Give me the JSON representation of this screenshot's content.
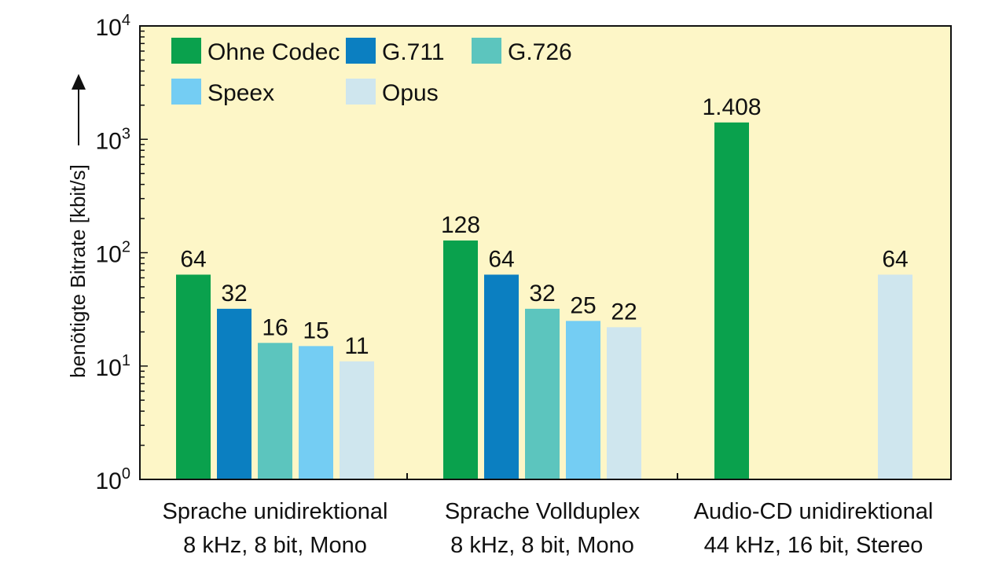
{
  "chart_data": {
    "type": "bar",
    "y_scale": "log",
    "ylim": [
      1,
      10000
    ],
    "ylabel": "benötigte Bitrate [kbit/s]",
    "background_color": "#fdf6c7",
    "y_ticks": [
      {
        "base": "10",
        "exp": "0"
      },
      {
        "base": "10",
        "exp": "1"
      },
      {
        "base": "10",
        "exp": "2"
      },
      {
        "base": "10",
        "exp": "3"
      },
      {
        "base": "10",
        "exp": "4"
      }
    ],
    "categories": [
      {
        "line1": "Sprache unidirektional",
        "line2": "8 kHz, 8 bit, Mono"
      },
      {
        "line1": "Sprache Vollduplex",
        "line2": "8 kHz, 8 bit, Mono"
      },
      {
        "line1": "Audio-CD unidirektional",
        "line2": "44 kHz, 16 bit, Stereo"
      }
    ],
    "series": [
      {
        "name": "Ohne Codec",
        "color": "#0aa14d"
      },
      {
        "name": "G.711",
        "color": "#0b7fc1"
      },
      {
        "name": "G.726",
        "color": "#5cc5be"
      },
      {
        "name": "Speex",
        "color": "#74cdf3"
      },
      {
        "name": "Opus",
        "color": "#cfe6ee"
      }
    ],
    "bars": [
      {
        "category": 0,
        "series": 0,
        "value": 64,
        "label": "64"
      },
      {
        "category": 0,
        "series": 1,
        "value": 32,
        "label": "32"
      },
      {
        "category": 0,
        "series": 2,
        "value": 16,
        "label": "16"
      },
      {
        "category": 0,
        "series": 3,
        "value": 15,
        "label": "15"
      },
      {
        "category": 0,
        "series": 4,
        "value": 11,
        "label": "11"
      },
      {
        "category": 1,
        "series": 0,
        "value": 128,
        "label": "128"
      },
      {
        "category": 1,
        "series": 1,
        "value": 64,
        "label": "64"
      },
      {
        "category": 1,
        "series": 2,
        "value": 32,
        "label": "32"
      },
      {
        "category": 1,
        "series": 3,
        "value": 25,
        "label": "25"
      },
      {
        "category": 1,
        "series": 4,
        "value": 22,
        "label": "22"
      },
      {
        "category": 2,
        "series": 0,
        "value": 1408,
        "label": "1.408"
      },
      {
        "category": 2,
        "series": 4,
        "value": 64,
        "label": "64"
      }
    ],
    "legend_position": "top-left",
    "grid": false
  }
}
